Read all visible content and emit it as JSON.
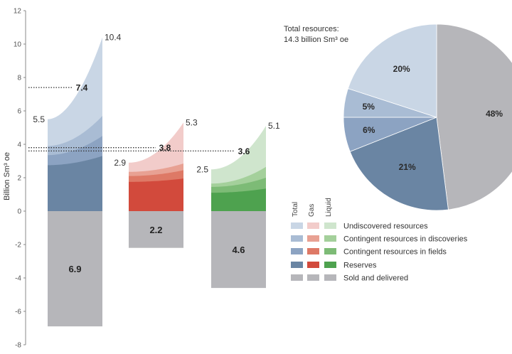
{
  "chart_data": [
    {
      "type": "area",
      "ylabel": "Billion Sm³ oe",
      "ylim": [
        -8,
        12
      ],
      "yticks": [
        -8,
        -6,
        -4,
        -2,
        0,
        2,
        4,
        6,
        8,
        10,
        12
      ],
      "groups": [
        {
          "name": "Total",
          "layers": [
            {
              "name": "Reserves",
              "start": 2.75,
              "end": 3.3
            },
            {
              "name": "Contingent resources in fields",
              "start": 3.35,
              "end": 4.5
            },
            {
              "name": "Contingent resources in discoveries",
              "start": 3.9,
              "end": 5.7
            },
            {
              "name": "Undiscovered resources",
              "start": 5.5,
              "end": 10.4
            }
          ],
          "start_label": "5.5",
          "end_label": "10.4",
          "mid_value": 7.4,
          "mid_label": "7.4",
          "sold": -6.9,
          "sold_label": "6.9"
        },
        {
          "name": "Gas",
          "layers": [
            {
              "name": "Reserves",
              "start": 1.75,
              "end": 1.95
            },
            {
              "name": "Contingent resources in fields",
              "start": 2.1,
              "end": 2.45
            },
            {
              "name": "Contingent resources in discoveries",
              "start": 2.35,
              "end": 2.85
            },
            {
              "name": "Undiscovered resources",
              "start": 2.9,
              "end": 5.3
            }
          ],
          "start_label": "2.9",
          "end_label": "5.3",
          "mid_value": 3.8,
          "mid_label": "3.8",
          "sold": -2.2,
          "sold_label": "2.2"
        },
        {
          "name": "Liquid",
          "layers": [
            {
              "name": "Reserves",
              "start": 1.1,
              "end": 1.35
            },
            {
              "name": "Contingent resources in fields",
              "start": 1.45,
              "end": 2.0
            },
            {
              "name": "Contingent resources in discoveries",
              "start": 1.65,
              "end": 2.65
            },
            {
              "name": "Undiscovered resources",
              "start": 2.5,
              "end": 5.1
            }
          ],
          "start_label": "2.5",
          "end_label": "5.1",
          "mid_value": 3.6,
          "mid_label": "3.6",
          "sold": -4.6,
          "sold_label": "4.6"
        }
      ],
      "colors": {
        "Total": [
          "#6a85a3",
          "#8ca3c2",
          "#a9bcd4",
          "#c9d6e5"
        ],
        "Gas": [
          "#d24a3c",
          "#de7966",
          "#e8a193",
          "#f2ccca"
        ],
        "Liquid": [
          "#4ea24f",
          "#7dbb76",
          "#a4d09b",
          "#cfe5cd"
        ],
        "sold": "#b6b6ba"
      },
      "legend": {
        "column_headers": [
          "Total",
          "Gas",
          "Liquid"
        ],
        "entries": [
          "Undiscovered resources",
          "Contingent resources in discoveries",
          "Contingent resources in fields",
          "Reserves",
          "Sold and delivered"
        ],
        "placement": "bottom-right"
      }
    },
    {
      "type": "pie",
      "title_line1": "Total resources:",
      "title_line2": "14.3 billion  Sm³ oe",
      "slices": [
        {
          "label": "48%",
          "value": 48,
          "color": "#b6b6ba"
        },
        {
          "label": "21%",
          "value": 21,
          "color": "#6a85a3"
        },
        {
          "label": "6%",
          "value": 6,
          "color": "#8ca3c2"
        },
        {
          "label": "5%",
          "value": 5,
          "color": "#a9bcd4"
        },
        {
          "label": "20%",
          "value": 20,
          "color": "#c9d6e5"
        }
      ]
    }
  ]
}
